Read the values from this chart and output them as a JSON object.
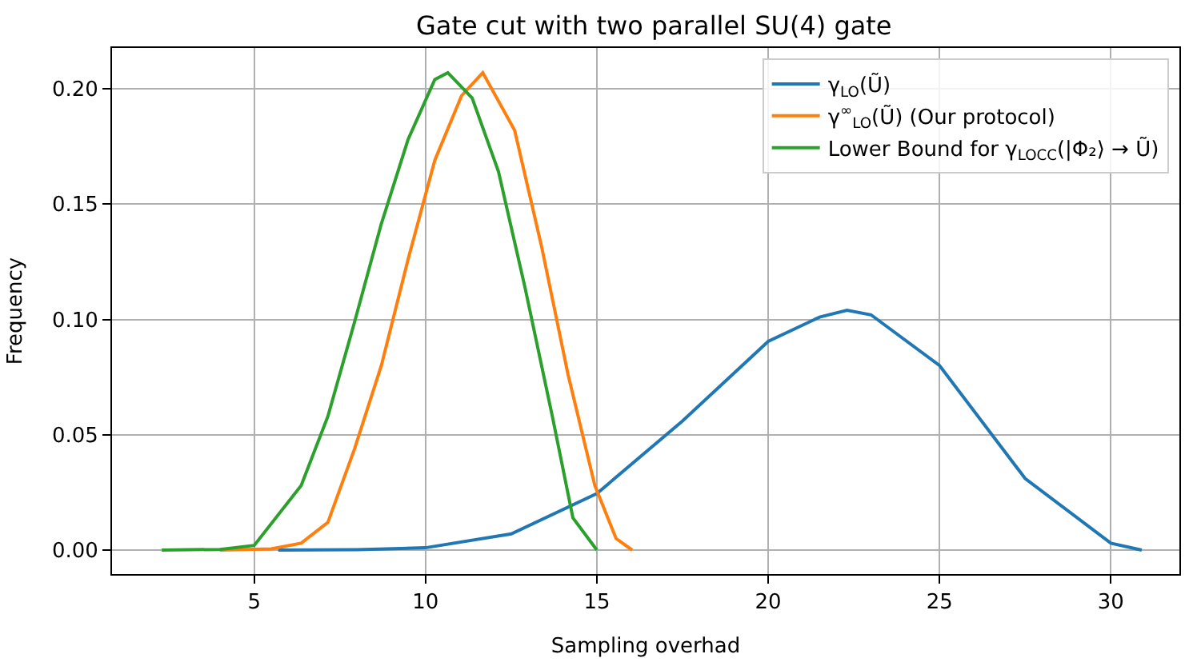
{
  "chart_data": {
    "type": "line",
    "title": "Gate cut with two parallel SU(4) gate",
    "xlabel": "Sampling overhad",
    "ylabel": "Frequency",
    "xlim": [
      0.85,
      32.0
    ],
    "ylim": [
      -0.0104,
      0.2177
    ],
    "xticks": [
      5,
      10,
      15,
      20,
      25,
      30
    ],
    "yticks": [
      {
        "value": 0,
        "label": "0.00"
      },
      {
        "value": 0.05,
        "label": "0.05"
      },
      {
        "value": 0.1,
        "label": "0.10"
      },
      {
        "value": 0.15,
        "label": "0.15"
      },
      {
        "value": 0.2,
        "label": "0.20"
      }
    ],
    "grid": true,
    "legend": "top right",
    "marker": "none",
    "line_style": "solid",
    "series": [
      {
        "name": "γ$_{LO}$(Ũ)",
        "color": "#1f77b4",
        "x": [
          5.7,
          8,
          10,
          12.5,
          15,
          17.5,
          20,
          21.5,
          22.3,
          23,
          25,
          27.5,
          30,
          30.9
        ],
        "values": [
          0,
          0.0002,
          0.001,
          0.007,
          0.0245,
          0.056,
          0.0905,
          0.101,
          0.104,
          0.102,
          0.08,
          0.031,
          0.003,
          0
        ]
      },
      {
        "name": "γ$^{∞}$$_{LO}$(Ũ) (Our protocol)",
        "color": "#ff7f0e",
        "x": [
          4.0,
          5.5,
          6.37,
          7.15,
          7.93,
          8.71,
          9.49,
          10.27,
          11.05,
          11.67,
          12.6,
          13.38,
          14.16,
          14.94,
          15.56,
          16.03
        ],
        "values": [
          0,
          0.0005,
          0.003,
          0.012,
          0.044,
          0.08,
          0.126,
          0.169,
          0.197,
          0.207,
          0.182,
          0.132,
          0.076,
          0.028,
          0.005,
          0
        ]
      },
      {
        "name": "Lower Bound for γ$_{LOCC}$(|Φ₂⟩ → Ũ)",
        "color": "#2ca02c",
        "x": [
          2.3,
          4.0,
          5.0,
          6.37,
          7.15,
          7.93,
          8.7,
          9.49,
          10.27,
          10.65,
          11.36,
          12.13,
          12.9,
          13.7,
          14.3,
          15.0
        ],
        "values": [
          0,
          0.0003,
          0.002,
          0.028,
          0.058,
          0.099,
          0.141,
          0.178,
          0.204,
          0.207,
          0.196,
          0.164,
          0.114,
          0.058,
          0.014,
          0
        ]
      }
    ]
  }
}
